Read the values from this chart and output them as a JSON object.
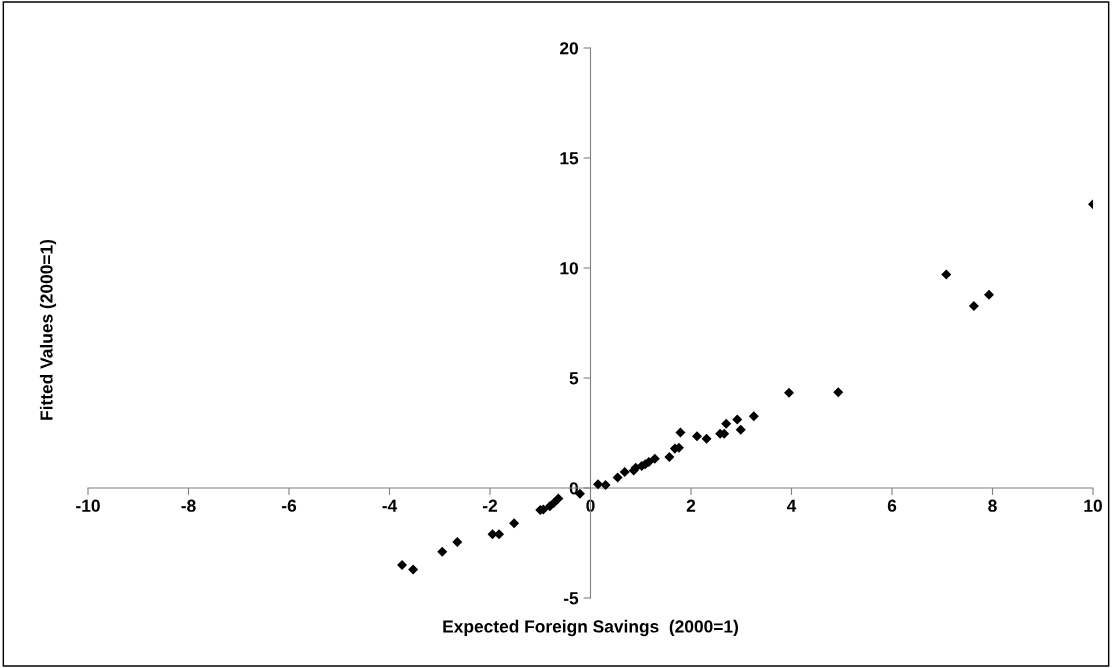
{
  "chart_data": {
    "type": "scatter",
    "xlabel": "Expected Foreign Savings  (2000=1)",
    "ylabel": "Fitted Values (2000=1)",
    "x": [
      -3.75,
      -3.53,
      -2.95,
      -2.65,
      -1.95,
      -1.82,
      -1.52,
      -1.0,
      -0.94,
      -0.81,
      -0.73,
      -0.64,
      -0.21,
      0.15,
      0.3,
      0.54,
      0.68,
      0.86,
      0.9,
      1.02,
      1.09,
      1.16,
      1.28,
      1.57,
      1.68,
      1.76,
      1.79,
      2.12,
      2.31,
      2.58,
      2.66,
      2.7,
      2.92,
      2.99,
      3.25,
      3.95,
      4.93,
      7.08,
      7.63,
      7.93,
      10.0
    ],
    "series": [
      {
        "color": "#000000",
        "values": [
          -3.5,
          -3.7,
          -2.9,
          -2.45,
          -2.1,
          -2.1,
          -1.6,
          -1.0,
          -0.98,
          -0.83,
          -0.68,
          -0.48,
          -0.26,
          0.17,
          0.14,
          0.48,
          0.73,
          0.8,
          0.92,
          1.0,
          1.08,
          1.18,
          1.33,
          1.41,
          1.79,
          1.83,
          2.52,
          2.35,
          2.24,
          2.47,
          2.47,
          2.92,
          3.11,
          2.65,
          3.26,
          4.33,
          4.35,
          9.7,
          8.27,
          8.78,
          12.9
        ]
      }
    ],
    "xlim": [
      -10,
      10
    ],
    "xticks": [
      -10,
      -8,
      -6,
      -4,
      -2,
      0,
      2,
      4,
      6,
      8,
      10
    ],
    "ylim": [
      -5,
      20
    ],
    "yticks": [
      -5,
      0,
      5,
      10,
      15,
      20
    ],
    "marker": "diamond",
    "grid": false,
    "legend": false
  }
}
